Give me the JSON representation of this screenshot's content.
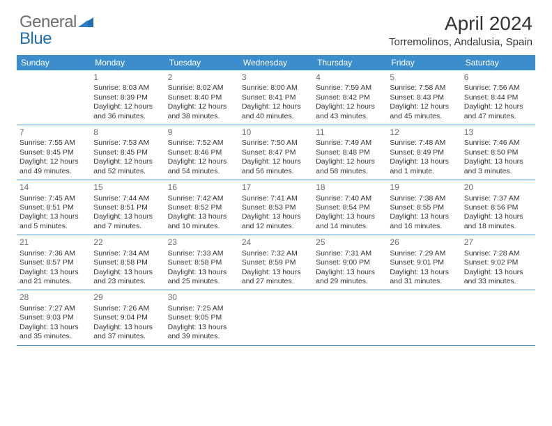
{
  "brand": {
    "word1": "General",
    "word2": "Blue"
  },
  "header": {
    "title": "April 2024",
    "location": "Torremolinos, Andalusia, Spain"
  },
  "colors": {
    "header_bg": "#3c8dcc",
    "header_text": "#ffffff",
    "divider": "#3c8dcc",
    "text": "#333333",
    "logo_gray": "#6c6c6c",
    "logo_blue": "#1f6fb2",
    "daynum": "#6c6c6c",
    "page_bg": "#ffffff"
  },
  "typography": {
    "title_fontsize": 28,
    "location_fontsize": 15,
    "dayheader_fontsize": 12,
    "cell_fontsize": 10.5,
    "daynum_fontsize": 12
  },
  "dayNames": [
    "Sunday",
    "Monday",
    "Tuesday",
    "Wednesday",
    "Thursday",
    "Friday",
    "Saturday"
  ],
  "weeks": [
    [
      {
        "day": "",
        "sunrise": "",
        "sunset": "",
        "daylight": ""
      },
      {
        "day": "1",
        "sunrise": "Sunrise: 8:03 AM",
        "sunset": "Sunset: 8:39 PM",
        "daylight": "Daylight: 12 hours and 36 minutes."
      },
      {
        "day": "2",
        "sunrise": "Sunrise: 8:02 AM",
        "sunset": "Sunset: 8:40 PM",
        "daylight": "Daylight: 12 hours and 38 minutes."
      },
      {
        "day": "3",
        "sunrise": "Sunrise: 8:00 AM",
        "sunset": "Sunset: 8:41 PM",
        "daylight": "Daylight: 12 hours and 40 minutes."
      },
      {
        "day": "4",
        "sunrise": "Sunrise: 7:59 AM",
        "sunset": "Sunset: 8:42 PM",
        "daylight": "Daylight: 12 hours and 43 minutes."
      },
      {
        "day": "5",
        "sunrise": "Sunrise: 7:58 AM",
        "sunset": "Sunset: 8:43 PM",
        "daylight": "Daylight: 12 hours and 45 minutes."
      },
      {
        "day": "6",
        "sunrise": "Sunrise: 7:56 AM",
        "sunset": "Sunset: 8:44 PM",
        "daylight": "Daylight: 12 hours and 47 minutes."
      }
    ],
    [
      {
        "day": "7",
        "sunrise": "Sunrise: 7:55 AM",
        "sunset": "Sunset: 8:45 PM",
        "daylight": "Daylight: 12 hours and 49 minutes."
      },
      {
        "day": "8",
        "sunrise": "Sunrise: 7:53 AM",
        "sunset": "Sunset: 8:45 PM",
        "daylight": "Daylight: 12 hours and 52 minutes."
      },
      {
        "day": "9",
        "sunrise": "Sunrise: 7:52 AM",
        "sunset": "Sunset: 8:46 PM",
        "daylight": "Daylight: 12 hours and 54 minutes."
      },
      {
        "day": "10",
        "sunrise": "Sunrise: 7:50 AM",
        "sunset": "Sunset: 8:47 PM",
        "daylight": "Daylight: 12 hours and 56 minutes."
      },
      {
        "day": "11",
        "sunrise": "Sunrise: 7:49 AM",
        "sunset": "Sunset: 8:48 PM",
        "daylight": "Daylight: 12 hours and 58 minutes."
      },
      {
        "day": "12",
        "sunrise": "Sunrise: 7:48 AM",
        "sunset": "Sunset: 8:49 PM",
        "daylight": "Daylight: 13 hours and 1 minute."
      },
      {
        "day": "13",
        "sunrise": "Sunrise: 7:46 AM",
        "sunset": "Sunset: 8:50 PM",
        "daylight": "Daylight: 13 hours and 3 minutes."
      }
    ],
    [
      {
        "day": "14",
        "sunrise": "Sunrise: 7:45 AM",
        "sunset": "Sunset: 8:51 PM",
        "daylight": "Daylight: 13 hours and 5 minutes."
      },
      {
        "day": "15",
        "sunrise": "Sunrise: 7:44 AM",
        "sunset": "Sunset: 8:51 PM",
        "daylight": "Daylight: 13 hours and 7 minutes."
      },
      {
        "day": "16",
        "sunrise": "Sunrise: 7:42 AM",
        "sunset": "Sunset: 8:52 PM",
        "daylight": "Daylight: 13 hours and 10 minutes."
      },
      {
        "day": "17",
        "sunrise": "Sunrise: 7:41 AM",
        "sunset": "Sunset: 8:53 PM",
        "daylight": "Daylight: 13 hours and 12 minutes."
      },
      {
        "day": "18",
        "sunrise": "Sunrise: 7:40 AM",
        "sunset": "Sunset: 8:54 PM",
        "daylight": "Daylight: 13 hours and 14 minutes."
      },
      {
        "day": "19",
        "sunrise": "Sunrise: 7:38 AM",
        "sunset": "Sunset: 8:55 PM",
        "daylight": "Daylight: 13 hours and 16 minutes."
      },
      {
        "day": "20",
        "sunrise": "Sunrise: 7:37 AM",
        "sunset": "Sunset: 8:56 PM",
        "daylight": "Daylight: 13 hours and 18 minutes."
      }
    ],
    [
      {
        "day": "21",
        "sunrise": "Sunrise: 7:36 AM",
        "sunset": "Sunset: 8:57 PM",
        "daylight": "Daylight: 13 hours and 21 minutes."
      },
      {
        "day": "22",
        "sunrise": "Sunrise: 7:34 AM",
        "sunset": "Sunset: 8:58 PM",
        "daylight": "Daylight: 13 hours and 23 minutes."
      },
      {
        "day": "23",
        "sunrise": "Sunrise: 7:33 AM",
        "sunset": "Sunset: 8:58 PM",
        "daylight": "Daylight: 13 hours and 25 minutes."
      },
      {
        "day": "24",
        "sunrise": "Sunrise: 7:32 AM",
        "sunset": "Sunset: 8:59 PM",
        "daylight": "Daylight: 13 hours and 27 minutes."
      },
      {
        "day": "25",
        "sunrise": "Sunrise: 7:31 AM",
        "sunset": "Sunset: 9:00 PM",
        "daylight": "Daylight: 13 hours and 29 minutes."
      },
      {
        "day": "26",
        "sunrise": "Sunrise: 7:29 AM",
        "sunset": "Sunset: 9:01 PM",
        "daylight": "Daylight: 13 hours and 31 minutes."
      },
      {
        "day": "27",
        "sunrise": "Sunrise: 7:28 AM",
        "sunset": "Sunset: 9:02 PM",
        "daylight": "Daylight: 13 hours and 33 minutes."
      }
    ],
    [
      {
        "day": "28",
        "sunrise": "Sunrise: 7:27 AM",
        "sunset": "Sunset: 9:03 PM",
        "daylight": "Daylight: 13 hours and 35 minutes."
      },
      {
        "day": "29",
        "sunrise": "Sunrise: 7:26 AM",
        "sunset": "Sunset: 9:04 PM",
        "daylight": "Daylight: 13 hours and 37 minutes."
      },
      {
        "day": "30",
        "sunrise": "Sunrise: 7:25 AM",
        "sunset": "Sunset: 9:05 PM",
        "daylight": "Daylight: 13 hours and 39 minutes."
      },
      {
        "day": "",
        "sunrise": "",
        "sunset": "",
        "daylight": ""
      },
      {
        "day": "",
        "sunrise": "",
        "sunset": "",
        "daylight": ""
      },
      {
        "day": "",
        "sunrise": "",
        "sunset": "",
        "daylight": ""
      },
      {
        "day": "",
        "sunrise": "",
        "sunset": "",
        "daylight": ""
      }
    ]
  ]
}
